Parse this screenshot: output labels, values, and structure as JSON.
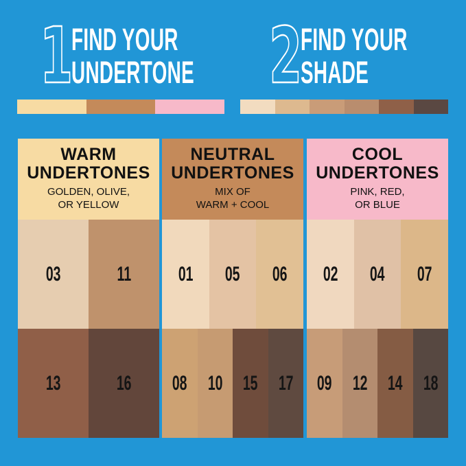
{
  "step1": {
    "number": "1",
    "line1": "FIND YOUR",
    "line2": "UNDERTONE",
    "bar": [
      "#f7dba3",
      "#c48a5a",
      "#f7b9c9"
    ]
  },
  "step2": {
    "number": "2",
    "line1": "FIND YOUR",
    "line2": "SHADE",
    "bar": [
      "#f2dcc0",
      "#ddb98f",
      "#c99c78",
      "#b98d6e",
      "#8f6048",
      "#5a4842"
    ]
  },
  "background": "#2196d6",
  "panels": [
    {
      "title1": "WARM",
      "title2": "UNDERTONES",
      "sub1": "GOLDEN, OLIVE,",
      "sub2": "OR YELLOW",
      "color": "#f7dba3",
      "row1": [
        {
          "label": "03",
          "color": "#e6cdb0"
        },
        {
          "label": "11",
          "color": "#bf926c"
        }
      ],
      "row2": [
        {
          "label": "13",
          "color": "#905f48"
        },
        {
          "label": "16",
          "color": "#62463b"
        }
      ]
    },
    {
      "title1": "NEUTRAL",
      "title2": "UNDERTONES",
      "sub1": "MIX OF",
      "sub2": "WARM + COOL",
      "color": "#c48a5a",
      "row1": [
        {
          "label": "01",
          "color": "#f1d9bc"
        },
        {
          "label": "05",
          "color": "#e4c3a4"
        },
        {
          "label": "06",
          "color": "#e1c094"
        }
      ],
      "row2": [
        {
          "label": "08",
          "color": "#cda273"
        },
        {
          "label": "10",
          "color": "#c69b72"
        },
        {
          "label": "15",
          "color": "#6f4c3c"
        },
        {
          "label": "17",
          "color": "#5f4a40"
        }
      ]
    },
    {
      "title1": "COOL",
      "title2": "UNDERTONES",
      "sub1": "PINK, RED,",
      "sub2": "OR BLUE",
      "color": "#f7b9c9",
      "row1": [
        {
          "label": "02",
          "color": "#f0d8bf"
        },
        {
          "label": "04",
          "color": "#e0c1a6"
        },
        {
          "label": "07",
          "color": "#dcb789"
        }
      ],
      "row2": [
        {
          "label": "09",
          "color": "#c79c78"
        },
        {
          "label": "12",
          "color": "#b48d70"
        },
        {
          "label": "14",
          "color": "#855c44"
        },
        {
          "label": "18",
          "color": "#574841"
        }
      ]
    }
  ]
}
